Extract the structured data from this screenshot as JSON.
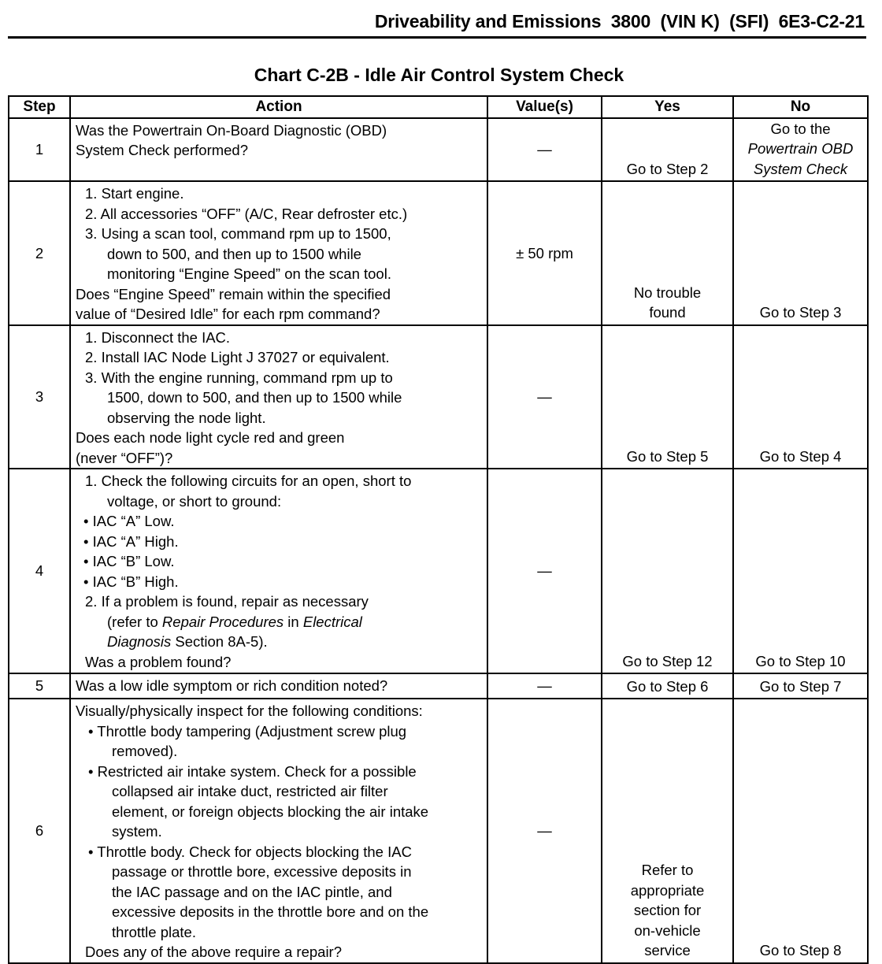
{
  "header": "Driveability and Emissions  3800  (VIN K)  (SFI)  6E3-C2-21",
  "title": "Chart C-2B - Idle Air Control System Check",
  "columns": [
    "Step",
    "Action",
    "Value(s)",
    "Yes",
    "No"
  ],
  "rows": [
    {
      "step": "1",
      "height": 79,
      "action": [
        {
          "k": "p",
          "s": [
            [
              "Was the Powertrain On-Board Diagnostic (OBD)"
            ]
          ]
        },
        {
          "k": "p",
          "s": [
            [
              "System Check performed?"
            ]
          ]
        }
      ],
      "value": "—",
      "yes": [
        [
          [
            "Go to Step 2"
          ]
        ]
      ],
      "no": [
        [
          [
            "Go to the"
          ]
        ],
        [
          [
            "Powertrain OBD",
            1
          ]
        ],
        [
          [
            "System Check",
            1
          ]
        ]
      ],
      "res_align": "bottom"
    },
    {
      "step": "2",
      "height": 178,
      "action": [
        {
          "k": "n",
          "s": [
            [
              "1. Start engine."
            ]
          ]
        },
        {
          "k": "n",
          "s": [
            [
              "2. All accessories “OFF” (A/C, Rear defroster etc.)"
            ]
          ]
        },
        {
          "k": "n",
          "s": [
            [
              "3. Using a scan tool, command rpm up to 1500,"
            ]
          ]
        },
        {
          "k": "ni",
          "s": [
            [
              "down to 500, and then up to 1500 while"
            ]
          ]
        },
        {
          "k": "ni",
          "s": [
            [
              "monitoring “Engine Speed” on the scan tool."
            ]
          ]
        },
        {
          "k": "p",
          "s": [
            [
              "Does “Engine Speed” remain within the specified"
            ]
          ]
        },
        {
          "k": "p",
          "s": [
            [
              "value of “Desired Idle” for each rpm command?"
            ]
          ]
        }
      ],
      "value": "± 50 rpm",
      "yes": [
        [
          [
            "No trouble"
          ]
        ],
        [
          [
            "found"
          ]
        ]
      ],
      "no": [
        [
          [
            "Go to Step 3"
          ]
        ]
      ]
    },
    {
      "step": "3",
      "height": 180,
      "action": [
        {
          "k": "n",
          "s": [
            [
              "1. Disconnect the IAC."
            ]
          ]
        },
        {
          "k": "n",
          "s": [
            [
              "2. Install IAC Node Light J 37027 or equivalent."
            ]
          ]
        },
        {
          "k": "n",
          "s": [
            [
              "3. With the engine running, command rpm up to"
            ]
          ]
        },
        {
          "k": "ni",
          "s": [
            [
              "1500, down to 500, and then up to 1500 while"
            ]
          ]
        },
        {
          "k": "ni",
          "s": [
            [
              "observing the node light."
            ]
          ]
        },
        {
          "k": "p",
          "s": [
            [
              "Does each node light cycle red and green"
            ]
          ]
        },
        {
          "k": "p",
          "s": [
            [
              "(never “OFF”)?"
            ]
          ]
        }
      ],
      "value": "—",
      "yes": [
        [
          [
            "Go to Step 5"
          ]
        ]
      ],
      "no": [
        [
          [
            "Go to Step 4"
          ]
        ]
      ]
    },
    {
      "step": "4",
      "height": 260,
      "action": [
        {
          "k": "n",
          "s": [
            [
              "1. Check the following circuits for an open, short to"
            ]
          ]
        },
        {
          "k": "ni",
          "s": [
            [
              "voltage, or short to ground:"
            ]
          ]
        },
        {
          "k": "b",
          "s": [
            [
              "•  IAC “A” Low."
            ]
          ]
        },
        {
          "k": "b",
          "s": [
            [
              "•  IAC “A” High."
            ]
          ]
        },
        {
          "k": "b",
          "s": [
            [
              "•  IAC “B” Low."
            ]
          ]
        },
        {
          "k": "b",
          "s": [
            [
              "•  IAC “B” High."
            ]
          ]
        },
        {
          "k": "n",
          "s": [
            [
              "2. If a problem is found, repair as necessary"
            ]
          ]
        },
        {
          "k": "ni",
          "s": [
            [
              "(refer to "
            ],
            [
              "Repair Procedures",
              1
            ],
            [
              " in "
            ],
            [
              "Electrical",
              1
            ]
          ]
        },
        {
          "k": "ni",
          "s": [
            [
              "Diagnosis",
              1
            ],
            [
              " Section 8A-5)."
            ]
          ]
        },
        {
          "k": "n",
          "s": [
            [
              "Was a problem found?"
            ]
          ]
        }
      ],
      "value": "—",
      "yes": [
        [
          [
            "Go to Step 12"
          ]
        ]
      ],
      "no": [
        [
          [
            "Go to Step 10"
          ]
        ]
      ]
    },
    {
      "step": "5",
      "height": 32,
      "action": [
        {
          "k": "p",
          "s": [
            [
              "Was a low idle symptom or rich condition noted?"
            ]
          ]
        }
      ],
      "value": "—",
      "yes": [
        [
          [
            "Go to Step 6"
          ]
        ]
      ],
      "no": [
        [
          [
            "Go to Step 7"
          ]
        ]
      ]
    },
    {
      "step": "6",
      "height": 326,
      "action": [
        {
          "k": "p",
          "s": [
            [
              "Visually/physically inspect for the following conditions:"
            ]
          ]
        },
        {
          "k": "b2",
          "s": [
            [
              "•  Throttle body tampering (Adjustment screw plug"
            ]
          ]
        },
        {
          "k": "b2i",
          "s": [
            [
              "removed)."
            ]
          ]
        },
        {
          "k": "b2",
          "s": [
            [
              "•  Restricted air intake system. Check for a possible"
            ]
          ]
        },
        {
          "k": "b2i",
          "s": [
            [
              "collapsed air intake duct, restricted air filter"
            ]
          ]
        },
        {
          "k": "b2i",
          "s": [
            [
              "element, or foreign objects blocking the air intake"
            ]
          ]
        },
        {
          "k": "b2i",
          "s": [
            [
              "system."
            ]
          ]
        },
        {
          "k": "b2",
          "s": [
            [
              "•  Throttle body. Check for objects blocking the IAC"
            ]
          ]
        },
        {
          "k": "b2i",
          "s": [
            [
              "passage or throttle bore, excessive deposits in"
            ]
          ]
        },
        {
          "k": "b2i",
          "s": [
            [
              "the IAC passage and on the IAC pintle, and"
            ]
          ]
        },
        {
          "k": "b2i",
          "s": [
            [
              "excessive deposits in the throttle bore and on the"
            ]
          ]
        },
        {
          "k": "b2i",
          "s": [
            [
              "throttle plate."
            ]
          ]
        },
        {
          "k": "n",
          "s": [
            [
              "Does any of the above require a repair?"
            ]
          ]
        }
      ],
      "value": "—",
      "yes": [
        [
          [
            "Refer to"
          ]
        ],
        [
          [
            "appropriate"
          ]
        ],
        [
          [
            "section for"
          ]
        ],
        [
          [
            "on-vehicle"
          ]
        ],
        [
          [
            "service"
          ]
        ]
      ],
      "no": [
        [
          [
            "Go to Step 8"
          ]
        ]
      ]
    }
  ]
}
